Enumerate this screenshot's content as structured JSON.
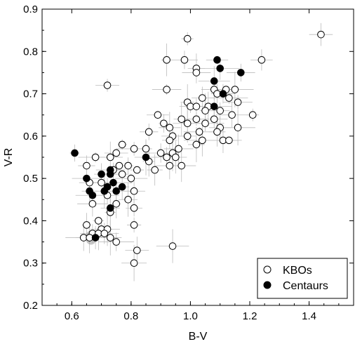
{
  "chart_data": {
    "type": "scatter",
    "title": "",
    "xlabel": "B-V",
    "ylabel": "V-R",
    "xlim": [
      0.5,
      1.55
    ],
    "ylim": [
      0.2,
      0.9
    ],
    "xticks": [
      "0.6",
      "0.8",
      "1.0",
      "1.2",
      "1.4"
    ],
    "yticks": [
      "0.2",
      "0.3",
      "0.4",
      "0.5",
      "0.6",
      "0.7",
      "0.8",
      "0.9"
    ],
    "grid": false,
    "legend_position": "bottom-right",
    "colors": {
      "kbo_fill": "#ffffff",
      "centaur_fill": "#000000",
      "error_bar": "#bbbbbb",
      "sun_marker": "#999999"
    },
    "series": [
      {
        "name": "KBOs",
        "marker": "open-circle",
        "points": [
          [
            1.44,
            0.84
          ],
          [
            0.99,
            0.83
          ],
          [
            1.24,
            0.78
          ],
          [
            0.92,
            0.78
          ],
          [
            0.98,
            0.78
          ],
          [
            1.02,
            0.76
          ],
          [
            1.02,
            0.75
          ],
          [
            0.72,
            0.72
          ],
          [
            0.92,
            0.71
          ],
          [
            1.08,
            0.71
          ],
          [
            1.12,
            0.71
          ],
          [
            1.15,
            0.71
          ],
          [
            1.09,
            0.7
          ],
          [
            1.13,
            0.69
          ],
          [
            1.04,
            0.69
          ],
          [
            1.16,
            0.68
          ],
          [
            0.99,
            0.68
          ],
          [
            1.0,
            0.67
          ],
          [
            1.02,
            0.67
          ],
          [
            1.06,
            0.67
          ],
          [
            1.1,
            0.66
          ],
          [
            1.05,
            0.66
          ],
          [
            0.97,
            0.64
          ],
          [
            1.02,
            0.64
          ],
          [
            1.08,
            0.64
          ],
          [
            1.14,
            0.65
          ],
          [
            1.21,
            0.65
          ],
          [
            0.89,
            0.65
          ],
          [
            0.91,
            0.63
          ],
          [
            0.99,
            0.63
          ],
          [
            1.05,
            0.63
          ],
          [
            1.1,
            0.62
          ],
          [
            0.93,
            0.62
          ],
          [
            0.94,
            0.6
          ],
          [
            0.99,
            0.6
          ],
          [
            1.03,
            0.61
          ],
          [
            1.09,
            0.61
          ],
          [
            1.16,
            0.62
          ],
          [
            1.04,
            0.59
          ],
          [
            1.11,
            0.59
          ],
          [
            1.13,
            0.59
          ],
          [
            0.86,
            0.61
          ],
          [
            0.93,
            0.59
          ],
          [
            0.96,
            0.57
          ],
          [
            1.02,
            0.58
          ],
          [
            0.85,
            0.57
          ],
          [
            0.9,
            0.56
          ],
          [
            0.94,
            0.56
          ],
          [
            0.95,
            0.55
          ],
          [
            0.92,
            0.55
          ],
          [
            0.86,
            0.54
          ],
          [
            0.81,
            0.57
          ],
          [
            0.77,
            0.58
          ],
          [
            0.93,
            0.53
          ],
          [
            0.97,
            0.53
          ],
          [
            0.88,
            0.52
          ],
          [
            0.82,
            0.52
          ],
          [
            0.76,
            0.53
          ],
          [
            0.73,
            0.55
          ],
          [
            0.68,
            0.55
          ],
          [
            0.75,
            0.56
          ],
          [
            0.65,
            0.53
          ],
          [
            0.79,
            0.53
          ],
          [
            0.74,
            0.52
          ],
          [
            0.8,
            0.5
          ],
          [
            0.77,
            0.51
          ],
          [
            0.7,
            0.49
          ],
          [
            0.66,
            0.49
          ],
          [
            0.72,
            0.46
          ],
          [
            0.75,
            0.44
          ],
          [
            0.81,
            0.47
          ],
          [
            0.79,
            0.45
          ],
          [
            0.67,
            0.44
          ],
          [
            0.81,
            0.43
          ],
          [
            0.73,
            0.42
          ],
          [
            0.69,
            0.4
          ],
          [
            0.81,
            0.39
          ],
          [
            0.65,
            0.39
          ],
          [
            0.7,
            0.38
          ],
          [
            0.72,
            0.38
          ],
          [
            0.67,
            0.37
          ],
          [
            0.69,
            0.37
          ],
          [
            0.71,
            0.37
          ],
          [
            0.64,
            0.36
          ],
          [
            0.73,
            0.36
          ],
          [
            0.75,
            0.35
          ],
          [
            0.82,
            0.33
          ],
          [
            0.94,
            0.34
          ],
          [
            0.81,
            0.3
          ],
          [
            0.66,
            0.36
          ]
        ]
      },
      {
        "name": "Centaurs",
        "marker": "filled-circle",
        "points": [
          [
            1.09,
            0.78
          ],
          [
            1.1,
            0.76
          ],
          [
            1.17,
            0.75
          ],
          [
            1.08,
            0.73
          ],
          [
            1.11,
            0.7
          ],
          [
            1.08,
            0.67
          ],
          [
            0.61,
            0.56
          ],
          [
            0.85,
            0.55
          ],
          [
            0.73,
            0.52
          ],
          [
            0.65,
            0.5
          ],
          [
            0.7,
            0.51
          ],
          [
            0.73,
            0.51
          ],
          [
            0.74,
            0.49
          ],
          [
            0.72,
            0.48
          ],
          [
            0.77,
            0.48
          ],
          [
            0.66,
            0.47
          ],
          [
            0.71,
            0.47
          ],
          [
            0.75,
            0.47
          ],
          [
            0.67,
            0.46
          ],
          [
            0.73,
            0.43
          ],
          [
            0.68,
            0.36
          ]
        ]
      }
    ],
    "legend": [
      {
        "label": "KBOs",
        "marker": "open-circle"
      },
      {
        "label": "Centaurs",
        "marker": "filled-circle"
      }
    ],
    "annotations": [
      {
        "marker": "sun-symbol",
        "x": 0.665,
        "y": 0.36
      }
    ]
  }
}
